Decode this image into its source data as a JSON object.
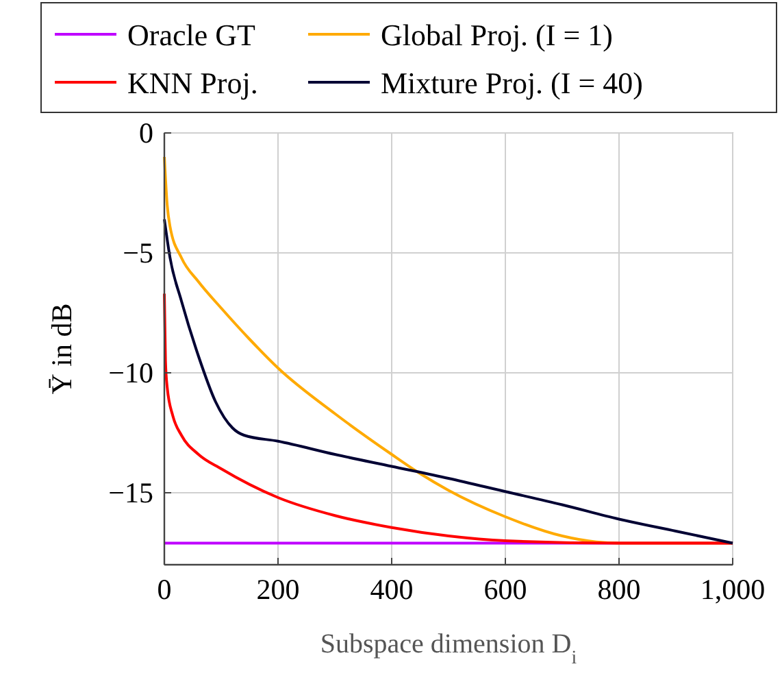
{
  "chart_data": {
    "type": "line",
    "xlabel": "Subspace dimension D$_{i}$",
    "ylabel": "Ῡ in dB",
    "xlim": [
      0,
      1000
    ],
    "ylim": [
      -18,
      0
    ],
    "xticks": [
      0,
      200,
      400,
      600,
      800,
      {
        "value": 1000,
        "label": "1,000"
      }
    ],
    "yticks": [
      {
        "value": -15,
        "label": "−15"
      },
      {
        "value": -10,
        "label": "−10"
      },
      {
        "value": -5,
        "label": "−5"
      },
      0
    ],
    "grid": true,
    "legend": "top",
    "line_style": "solid",
    "marker": "none",
    "series": [
      {
        "name": "Oracle GT",
        "color": "#bf00ff",
        "x": [
          0,
          1000
        ],
        "values": [
          -17.1,
          -17.1
        ]
      },
      {
        "name": "Global Proj. (I = 1)",
        "color": "#ffaa00",
        "x": [
          0,
          5,
          10,
          30,
          60,
          100,
          150,
          200,
          300,
          400,
          450,
          500,
          600,
          700,
          760,
          800,
          1000
        ],
        "values": [
          -1,
          -3,
          -3.9,
          -5.2,
          -6.2,
          -7.3,
          -8.6,
          -9.8,
          -11.7,
          -13.4,
          -14.2,
          -14.9,
          -16,
          -16.8,
          -17.05,
          -17.1,
          -17.1
        ]
      },
      {
        "name": "KNN Proj.",
        "color": "#ff0000",
        "x": [
          0,
          2,
          5,
          15,
          30,
          60,
          100,
          200,
          300,
          400,
          500,
          600,
          800,
          1000
        ],
        "values": [
          -6.7,
          -9.5,
          -10.6,
          -11.8,
          -12.6,
          -13.4,
          -14,
          -15.2,
          -15.95,
          -16.45,
          -16.8,
          -17,
          -17.1,
          -17.1
        ]
      },
      {
        "name": "Mixture Proj. (I = 40)",
        "color": "#000033",
        "x": [
          0,
          10,
          30,
          60,
          90,
          120,
          140,
          200,
          300,
          400,
          500,
          600,
          700,
          800,
          900,
          1000
        ],
        "values": [
          -3.6,
          -5.2,
          -7,
          -9.3,
          -11.2,
          -12.3,
          -12.6,
          -12.85,
          -13.4,
          -13.9,
          -14.4,
          -14.95,
          -15.5,
          -16.1,
          -16.6,
          -17.1
        ]
      }
    ]
  }
}
